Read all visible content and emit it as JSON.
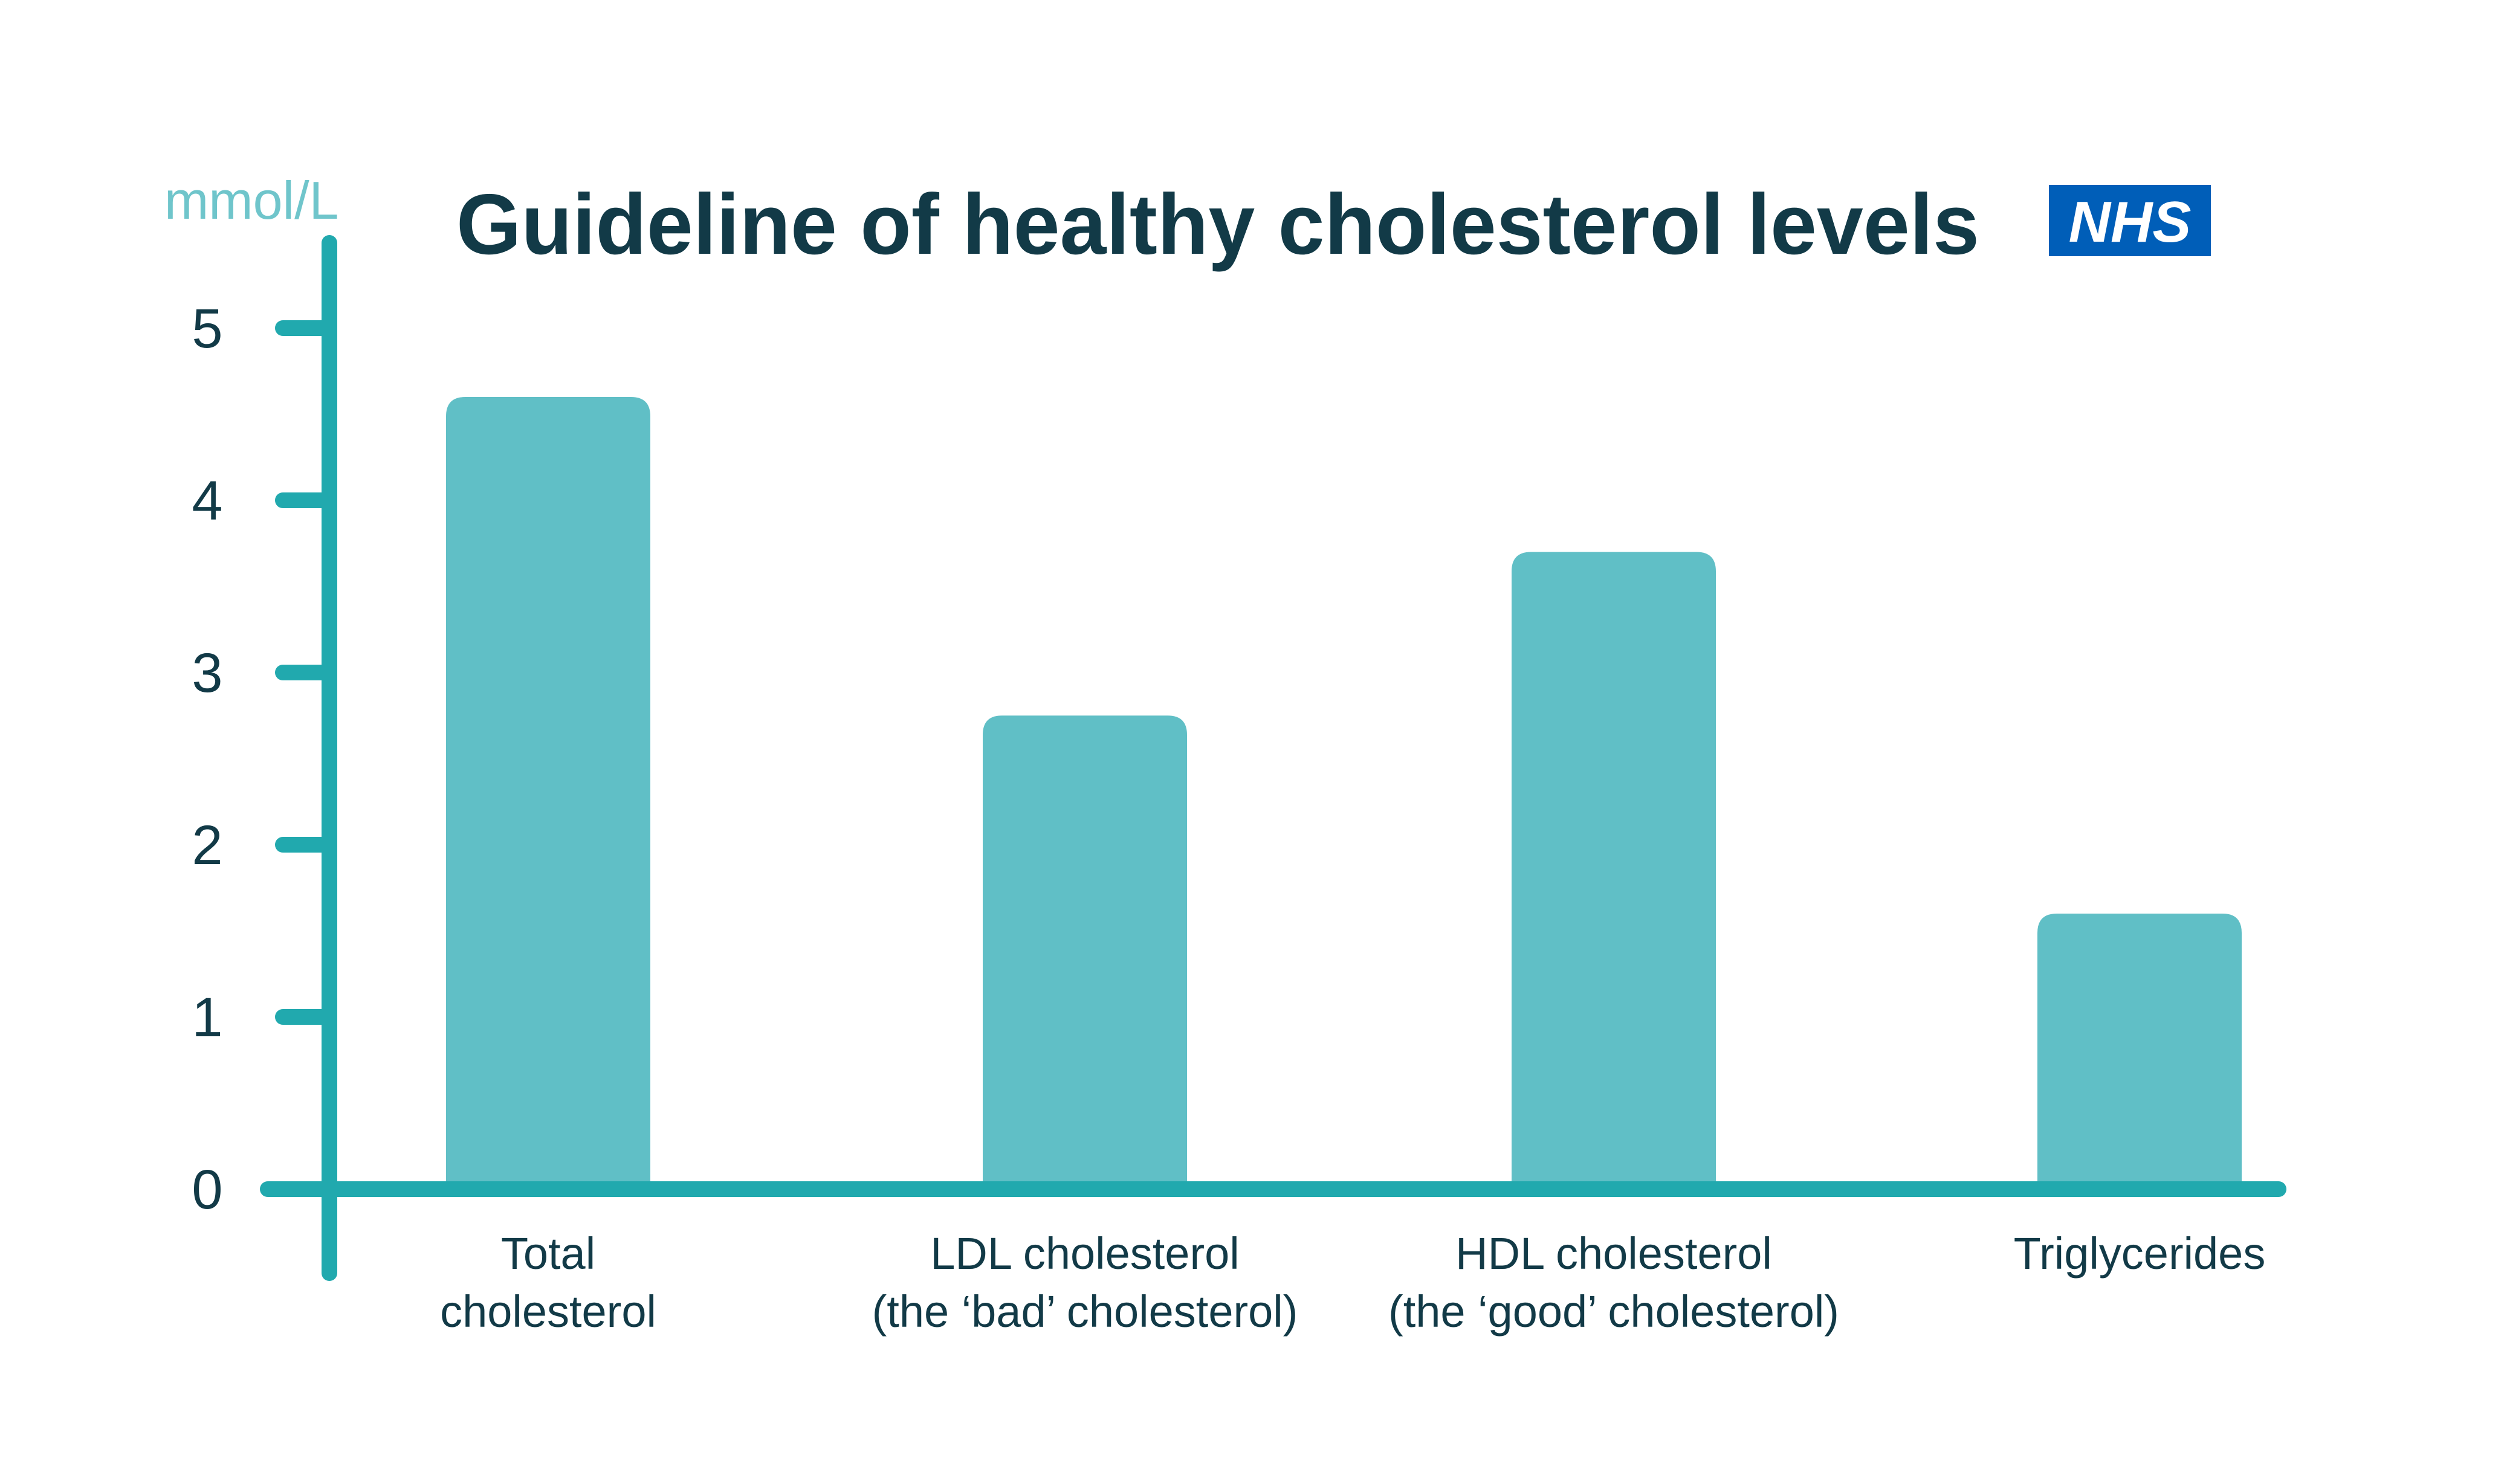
{
  "header": {
    "title": "Guideline of healthy cholesterol levels",
    "unit_label": "mmol/L",
    "logo_text": "NHS"
  },
  "chart_data": {
    "type": "bar",
    "title": "Guideline of healthy cholesterol levels",
    "ylabel": "mmol/L",
    "xlabel": "",
    "ylim": [
      0,
      5
    ],
    "yticks": [
      0,
      1,
      2,
      3,
      4,
      5
    ],
    "grid": false,
    "legend": "none",
    "categories": [
      "Total cholesterol",
      "LDL cholesterol (the ‘bad’ cholesterol)",
      "HDL cholesterol (the ‘good’ cholesterol)",
      "Triglycerides"
    ],
    "category_lines": [
      [
        "Total",
        "cholesterol"
      ],
      [
        "LDL cholesterol",
        "(the ‘bad’ cholesterol)"
      ],
      [
        "HDL cholesterol",
        "(the ‘good’ cholesterol)"
      ],
      [
        "Triglycerides"
      ]
    ],
    "values": [
      4.6,
      2.75,
      3.7,
      1.6
    ],
    "colors": {
      "bar_fill": "#60bfc6",
      "axis": "#21a9ae",
      "text_dark": "#123a47",
      "unit_label": "#6fc5cb",
      "nhs_blue": "#005eb8",
      "nhs_text": "#ffffff",
      "background": "#ffffff"
    }
  }
}
